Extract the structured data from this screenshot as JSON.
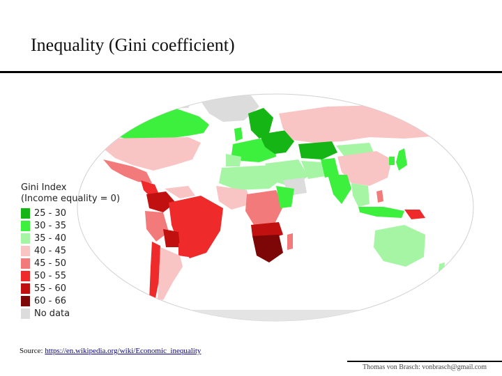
{
  "slide": {
    "title": "Inequality (Gini coefficient)",
    "source_prefix": "Source: ",
    "source_link": "https://en.wikipedia.org/wiki/Economic_inequality",
    "footer": "Thomas von Brasch: vonbrasch@gmail.com"
  },
  "legend": {
    "title": "Gini Index",
    "subtitle": "(Income equality = 0)",
    "items": [
      {
        "label": "25 - 30",
        "color": "#16b516"
      },
      {
        "label": "30 - 35",
        "color": "#3ef03e"
      },
      {
        "label": "35 - 40",
        "color": "#a5f5a5"
      },
      {
        "label": "40 - 45",
        "color": "#f9c4c4"
      },
      {
        "label": "45 - 50",
        "color": "#f27a7a"
      },
      {
        "label": "50 - 55",
        "color": "#ee2a2a"
      },
      {
        "label": "55 - 60",
        "color": "#c01010"
      },
      {
        "label": "60 - 66",
        "color": "#7d0606"
      },
      {
        "label": "No data",
        "color": "#dcdcdc"
      }
    ]
  },
  "map": {
    "ocean_color": "#ffffff",
    "border_color": "#cfcfcf"
  }
}
